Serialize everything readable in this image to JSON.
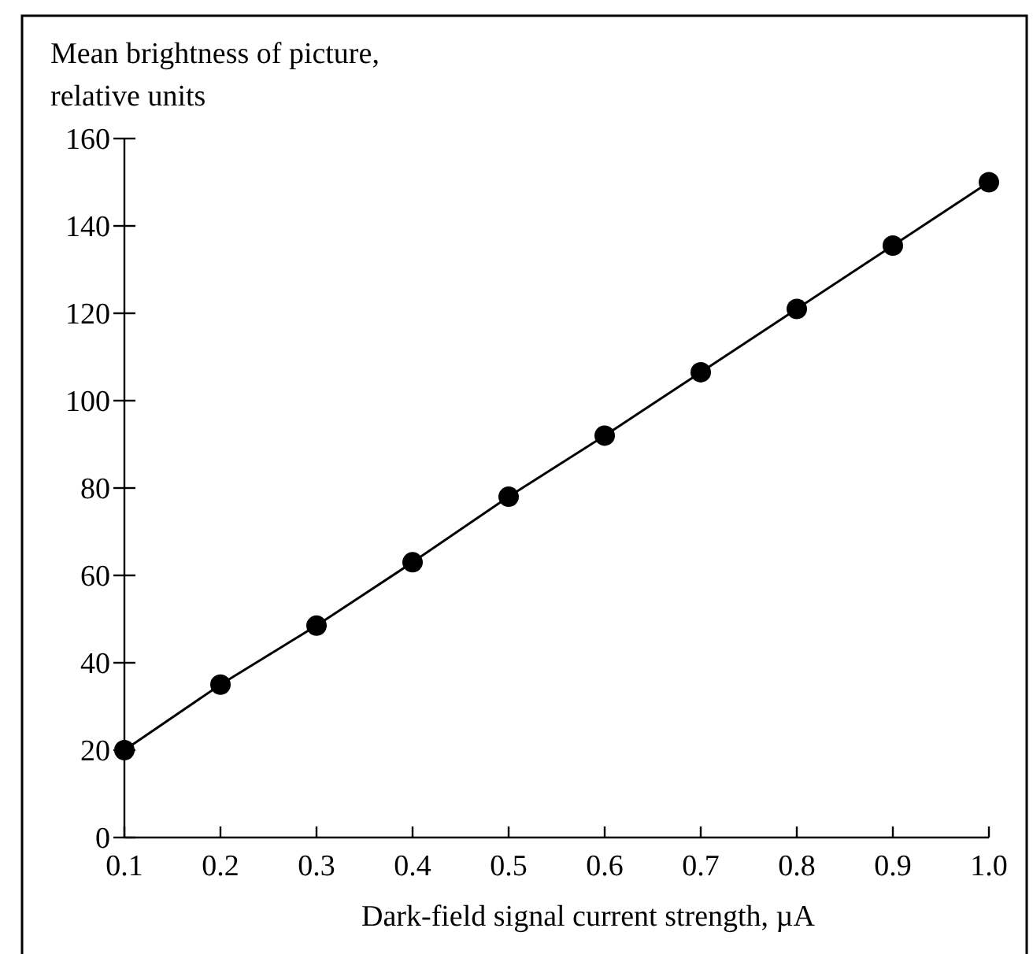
{
  "chart_data": {
    "type": "line",
    "xlabel": "Dark-field signal current strength, µA",
    "ylabel": "Mean brightness of picture, relative units",
    "x": [
      0.1,
      0.2,
      0.3,
      0.4,
      0.5,
      0.6,
      0.7,
      0.8,
      0.9,
      1.0
    ],
    "series": [
      {
        "color": "#000000",
        "values": [
          20,
          35,
          48.5,
          63,
          78,
          92,
          106.5,
          121,
          135.5,
          150
        ]
      }
    ],
    "xlim": [
      0.1,
      1.0
    ],
    "xticks": [
      {
        "value": 0.1,
        "label": "0.1"
      },
      {
        "value": 0.2,
        "label": "0.2"
      },
      {
        "value": 0.3,
        "label": "0.3"
      },
      {
        "value": 0.4,
        "label": "0.4"
      },
      {
        "value": 0.5,
        "label": "0.5"
      },
      {
        "value": 0.6,
        "label": "0.6"
      },
      {
        "value": 0.7,
        "label": "0.7"
      },
      {
        "value": 0.8,
        "label": "0.8"
      },
      {
        "value": 0.9,
        "label": "0.9"
      },
      {
        "value": 1.0,
        "label": "1.0"
      }
    ],
    "ylim": [
      0,
      160
    ],
    "yticks": [
      0,
      20,
      40,
      60,
      80,
      100,
      120,
      140,
      160
    ],
    "grid": false,
    "marker": "circle",
    "line_style": "solid"
  }
}
